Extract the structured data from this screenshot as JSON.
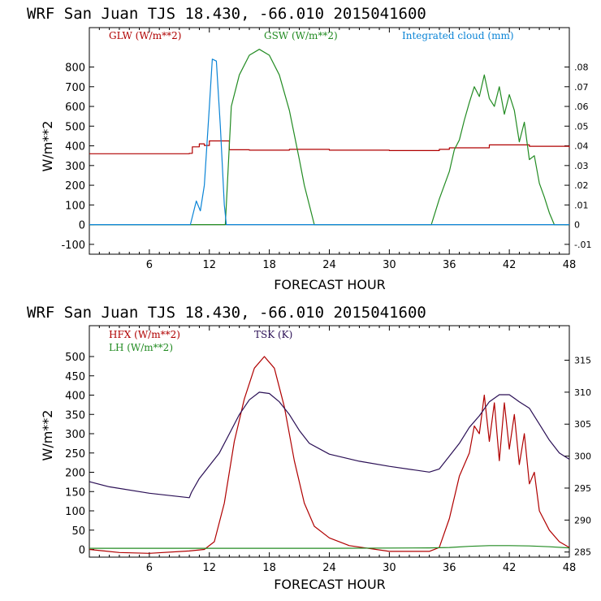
{
  "title": "WRF  San Juan TJS  18.430, -66.010  2015041600",
  "colors": {
    "red": "#b00000",
    "green": "#228B22",
    "blue": "#0a84d6",
    "purple": "#2a0f55",
    "frame": "#000000"
  },
  "chart_data": [
    {
      "type": "line",
      "title": "WRF  San Juan TJS  18.430, -66.010  2015041600",
      "xlabel": "FORECAST HOUR",
      "ylabel": "W/m**2",
      "xlim": [
        0,
        48
      ],
      "ylim": [
        -150,
        1000
      ],
      "y2lim": [
        -0.015,
        0.1
      ],
      "xticks": [
        6,
        12,
        18,
        24,
        30,
        36,
        42,
        48
      ],
      "yticks": [
        -100,
        0,
        100,
        200,
        300,
        400,
        500,
        600,
        700,
        800
      ],
      "yticks_right": [
        -0.01,
        0,
        0.01,
        0.02,
        0.03,
        0.04,
        0.05,
        0.06,
        0.07,
        0.08
      ],
      "ytick_labels_right": [
        "-.01",
        "0",
        ".01",
        ".02",
        ".03",
        ".04",
        ".05",
        ".06",
        ".07",
        ".08"
      ],
      "zero_line": true,
      "series": [
        {
          "name": "GLW (W/m**2)",
          "color": "#b00000",
          "axis": "left",
          "step": true,
          "x": [
            0,
            10,
            10.3,
            11,
            11.5,
            12,
            13.7,
            14,
            16,
            20,
            24,
            30,
            35,
            36,
            40,
            44,
            48
          ],
          "y": [
            360,
            362,
            395,
            410,
            402,
            425,
            425,
            380,
            378,
            382,
            378,
            376,
            382,
            390,
            405,
            398,
            392
          ]
        },
        {
          "name": "GSW (W/m**2)",
          "color": "#228B22",
          "axis": "left",
          "x": [
            0,
            13.6,
            13.8,
            14.2,
            15,
            16,
            17,
            18,
            19,
            20,
            21,
            21.5,
            22.5,
            34.2,
            35,
            36,
            36.5,
            37,
            37.5,
            38,
            38.5,
            39,
            39.5,
            40,
            40.5,
            41,
            41.5,
            42,
            42.5,
            43,
            43.5,
            44,
            44.5,
            45,
            45.5,
            46,
            46.5,
            48
          ],
          "y": [
            0,
            0,
            200,
            600,
            760,
            860,
            890,
            860,
            760,
            580,
            330,
            200,
            0,
            0,
            130,
            270,
            380,
            430,
            530,
            620,
            700,
            650,
            760,
            640,
            600,
            700,
            560,
            660,
            580,
            420,
            520,
            330,
            350,
            210,
            140,
            60,
            0,
            0
          ]
        },
        {
          "name": "Integrated cloud (mm)",
          "color": "#0a84d6",
          "axis": "right",
          "x": [
            0,
            10.1,
            10.7,
            11.1,
            11.5,
            12,
            12.3,
            12.7,
            13.1,
            13.5,
            13.7,
            48
          ],
          "y": [
            0,
            0,
            0.012,
            0.007,
            0.02,
            0.06,
            0.084,
            0.083,
            0.05,
            0.01,
            0,
            0
          ]
        }
      ]
    },
    {
      "type": "line",
      "title": "WRF  San Juan TJS  18.430, -66.010  2015041600",
      "xlabel": "FORECAST HOUR",
      "ylabel": "W/m**2",
      "xlim": [
        0,
        48
      ],
      "ylim": [
        -20,
        580
      ],
      "y2lim": [
        284.2,
        320.4
      ],
      "xticks": [
        6,
        12,
        18,
        24,
        30,
        36,
        42,
        48
      ],
      "yticks": [
        0,
        50,
        100,
        150,
        200,
        250,
        300,
        350,
        400,
        450,
        500
      ],
      "yticks_right": [
        285,
        290,
        295,
        300,
        305,
        310,
        315
      ],
      "ytick_labels_right": [
        "285",
        "290",
        "295",
        "300",
        "305",
        "310",
        "315"
      ],
      "series": [
        {
          "name": "HFX (W/m**2)",
          "color": "#b00000",
          "axis": "left",
          "x": [
            0,
            3,
            6,
            10,
            11.5,
            12.5,
            13.5,
            14.5,
            15.5,
            16.5,
            17.5,
            18.5,
            19.5,
            20.5,
            21.5,
            22.5,
            24,
            26,
            30,
            34,
            35,
            36,
            37,
            38,
            38.5,
            39,
            39.5,
            40,
            40.5,
            41,
            41.5,
            42,
            42.5,
            43,
            43.5,
            44,
            44.5,
            45,
            46,
            47,
            48
          ],
          "y": [
            0,
            -8,
            -10,
            -4,
            0,
            20,
            120,
            280,
            390,
            470,
            500,
            470,
            370,
            230,
            120,
            60,
            30,
            10,
            -5,
            -5,
            5,
            80,
            190,
            250,
            320,
            300,
            400,
            280,
            380,
            230,
            380,
            260,
            350,
            220,
            300,
            170,
            200,
            100,
            50,
            20,
            5
          ]
        },
        {
          "name": "LH  (W/m**2)",
          "color": "#228B22",
          "axis": "left",
          "x": [
            0,
            12,
            24,
            34,
            36,
            38,
            40,
            42,
            44,
            46,
            48
          ],
          "y": [
            3,
            3,
            3,
            4,
            5,
            8,
            10,
            10,
            9,
            7,
            4
          ]
        },
        {
          "name": "TSK (K)",
          "color": "#2a0f55",
          "axis": "right",
          "x": [
            0,
            2,
            6,
            10,
            10.2,
            11,
            12,
            13,
            14,
            15,
            16,
            17,
            18,
            19,
            20,
            21,
            22,
            24,
            27,
            30,
            34,
            35,
            36,
            37,
            38,
            39,
            40,
            41,
            42,
            43,
            44,
            45,
            46,
            47,
            48
          ],
          "y": [
            296,
            295.2,
            294.2,
            293.5,
            294.3,
            296.5,
            298.5,
            300.5,
            303.5,
            306.5,
            308.8,
            310,
            309.8,
            308.5,
            306.5,
            304,
            302,
            300.3,
            299.2,
            298.4,
            297.5,
            298,
            300,
            302,
            304.5,
            306.3,
            308.5,
            309.6,
            309.6,
            308.5,
            307.5,
            305,
            302.5,
            300.5,
            299.5
          ]
        }
      ]
    }
  ]
}
